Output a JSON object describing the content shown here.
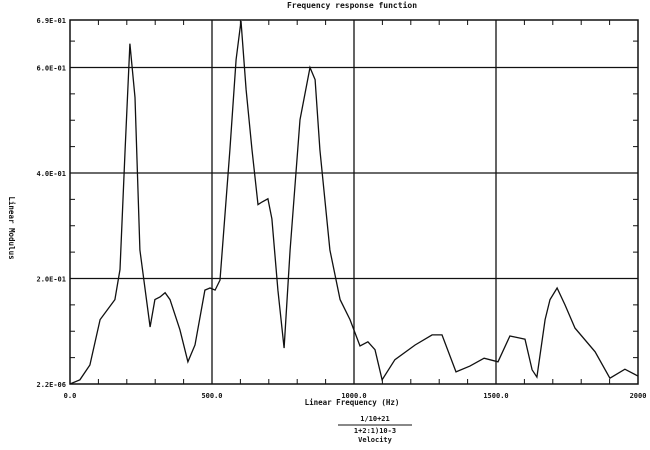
{
  "chart_data": {
    "type": "line",
    "title": "Frequency response function",
    "xlabel": "Linear Frequency (Hz)",
    "ylabel": "Linear Modulus",
    "xlim": [
      0,
      2000
    ],
    "ylim": [
      0,
      0.69
    ],
    "x_ticks": [
      0,
      500,
      1000,
      1500,
      2000
    ],
    "x_tick_labels": [
      "0.0",
      "500.0",
      "1000.0",
      "1500.0",
      "2000"
    ],
    "y_ticks": [
      0,
      0.2,
      0.4,
      0.6,
      0.69
    ],
    "y_tick_labels": [
      "2.2E-06",
      "2.0E-01",
      "4.0E-01",
      "6.0E-01",
      "6.9E-01"
    ],
    "grid": true,
    "footer": {
      "numerator": "1/10+21",
      "denominator": "1+2:1)10-3",
      "quantity": "Velocity"
    },
    "colors": {
      "line": "#111111",
      "grid": "#111111"
    },
    "series": [
      {
        "x": [
          0,
          35,
          70,
          106,
          158,
          176,
          194,
          211,
          229,
          246,
          282,
          299,
          317,
          335,
          352,
          387,
          415,
          440,
          475,
          493,
          511,
          528,
          563,
          585,
          602,
          620,
          641,
          662,
          676,
          697,
          711,
          732,
          754,
          775,
          810,
          845,
          863,
          880,
          915,
          951,
          986,
          1021,
          1049,
          1074,
          1099,
          1144,
          1215,
          1275,
          1310,
          1359,
          1408,
          1458,
          1507,
          1549,
          1585,
          1602,
          1627,
          1644,
          1673,
          1690,
          1715,
          1743,
          1778,
          1849,
          1901,
          1954,
          2000
        ],
        "y": [
          0,
          0.008,
          0.036,
          0.122,
          0.16,
          0.217,
          0.444,
          0.645,
          0.543,
          0.254,
          0.108,
          0.16,
          0.165,
          0.173,
          0.16,
          0.103,
          0.042,
          0.074,
          0.178,
          0.182,
          0.178,
          0.197,
          0.444,
          0.615,
          0.688,
          0.558,
          0.444,
          0.34,
          0.345,
          0.351,
          0.313,
          0.178,
          0.068,
          0.254,
          0.501,
          0.6,
          0.577,
          0.444,
          0.254,
          0.16,
          0.122,
          0.072,
          0.08,
          0.065,
          0.008,
          0.046,
          0.074,
          0.093,
          0.093,
          0.023,
          0.034,
          0.049,
          0.042,
          0.091,
          0.087,
          0.085,
          0.027,
          0.013,
          0.122,
          0.16,
          0.182,
          0.15,
          0.106,
          0.061,
          0.011,
          0.028,
          0.015
        ]
      }
    ]
  }
}
